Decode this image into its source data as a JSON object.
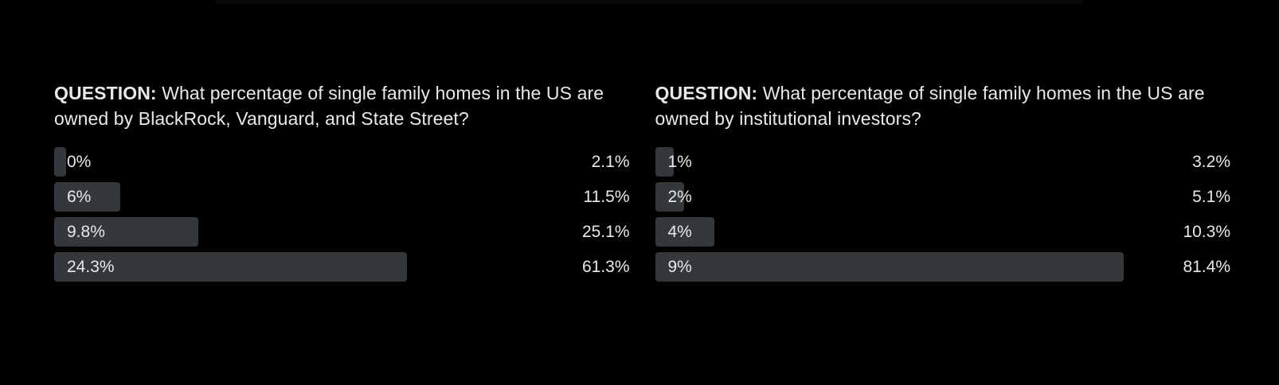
{
  "colors": {
    "background": "#000000",
    "bar_fill": "#34373b",
    "text_primary": "#e7e9ea"
  },
  "polls": [
    {
      "question_prefix": "QUESTION:",
      "question_text": "What percentage of single family homes in the US are owned by BlackRock, Vanguard, and State Street?",
      "options": [
        {
          "label": "0%",
          "vote_share": "2.1%",
          "bar_percent": 2.1
        },
        {
          "label": "6%",
          "vote_share": "11.5%",
          "bar_percent": 11.5
        },
        {
          "label": "9.8%",
          "vote_share": "25.1%",
          "bar_percent": 25.1
        },
        {
          "label": "24.3%",
          "vote_share": "61.3%",
          "bar_percent": 61.3
        }
      ]
    },
    {
      "question_prefix": "QUESTION:",
      "question_text": "What percentage of single family homes in the US are owned by institutional investors?",
      "options": [
        {
          "label": "1%",
          "vote_share": "3.2%",
          "bar_percent": 3.2
        },
        {
          "label": "2%",
          "vote_share": "5.1%",
          "bar_percent": 5.1
        },
        {
          "label": "4%",
          "vote_share": "10.3%",
          "bar_percent": 10.3
        },
        {
          "label": "9%",
          "vote_share": "81.4%",
          "bar_percent": 81.4
        }
      ]
    }
  ],
  "chart_data": [
    {
      "type": "bar",
      "orientation": "horizontal",
      "title": "QUESTION: What percentage of single family homes in the US are owned by BlackRock, Vanguard, and State Street?",
      "categories": [
        "0%",
        "6%",
        "9.8%",
        "24.3%"
      ],
      "values": [
        2.1,
        11.5,
        25.1,
        61.3
      ],
      "value_labels": [
        "2.1%",
        "11.5%",
        "25.1%",
        "61.3%"
      ],
      "xlabel": "",
      "ylabel": "",
      "xlim": [
        0,
        100
      ],
      "grid": false,
      "legend": false,
      "bar_color": "#34373b",
      "background": "#000000"
    },
    {
      "type": "bar",
      "orientation": "horizontal",
      "title": "QUESTION: What percentage of single family homes in the US are owned by institutional investors?",
      "categories": [
        "1%",
        "2%",
        "4%",
        "9%"
      ],
      "values": [
        3.2,
        5.1,
        10.3,
        81.4
      ],
      "value_labels": [
        "3.2%",
        "5.1%",
        "10.3%",
        "81.4%"
      ],
      "xlabel": "",
      "ylabel": "",
      "xlim": [
        0,
        100
      ],
      "grid": false,
      "legend": false,
      "bar_color": "#34373b",
      "background": "#000000"
    }
  ]
}
